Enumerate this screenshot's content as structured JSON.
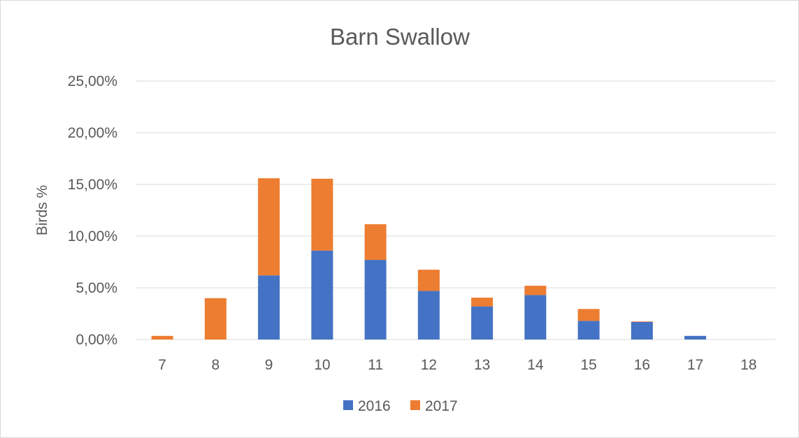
{
  "chart_data": {
    "type": "bar",
    "stacked": true,
    "title": "Barn Swallow",
    "xlabel": "",
    "ylabel": "Birds %",
    "categories": [
      "7",
      "8",
      "9",
      "10",
      "11",
      "12",
      "13",
      "14",
      "15",
      "16",
      "17",
      "18"
    ],
    "series": [
      {
        "name": "2016",
        "color": "#4472C4",
        "values": [
          0,
          0,
          6.2,
          8.6,
          7.7,
          4.7,
          3.2,
          4.3,
          1.8,
          1.7,
          0.35,
          0
        ]
      },
      {
        "name": "2017",
        "color": "#ED7D31",
        "values": [
          0.35,
          4.0,
          9.4,
          6.95,
          3.45,
          2.05,
          0.85,
          0.9,
          1.15,
          0.05,
          0,
          0
        ]
      }
    ],
    "ylim": [
      0,
      25
    ],
    "yticks": [
      0,
      5,
      10,
      15,
      20,
      25
    ],
    "ytick_labels": [
      "0,00%",
      "5,00%",
      "10,00%",
      "15,00%",
      "20,00%",
      "25,00%"
    ],
    "grid": true,
    "legend_position": "bottom"
  }
}
